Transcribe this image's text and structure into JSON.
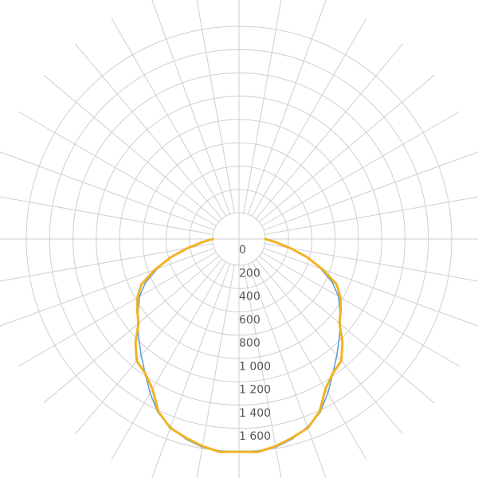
{
  "chart_data": {
    "type": "polar-line",
    "title": "",
    "radial_axis": {
      "range": [
        0,
        1600
      ],
      "tick_values": [
        0,
        200,
        400,
        600,
        800,
        1000,
        1200,
        1400,
        1600
      ],
      "tick_labels": [
        "0",
        "200",
        "400",
        "600",
        "800",
        "1 000",
        "1 200",
        "1 400",
        "1 600"
      ]
    },
    "angular_axis": {
      "spoke_step_deg": 10,
      "zero_direction": "down",
      "symmetric": true
    },
    "grid": true,
    "legend": "none",
    "series": [
      {
        "color": "#5b9bd5",
        "line_width": 1.5,
        "angles_deg": [
          0,
          5,
          10,
          15,
          20,
          25,
          30,
          35,
          40,
          45,
          50,
          55,
          60,
          65,
          70,
          75,
          80,
          85,
          90
        ],
        "values": [
          1600,
          1600,
          1590,
          1550,
          1490,
          1420,
          1300,
          1180,
          1080,
          990,
          910,
          830,
          760,
          660,
          520,
          380,
          220,
          90,
          0
        ]
      },
      {
        "color": "#f0b323",
        "line_width": 3,
        "angles_deg": [
          0,
          5,
          10,
          15,
          20,
          25,
          30,
          35,
          40,
          45,
          50,
          55,
          60,
          65,
          70,
          75,
          80,
          85,
          90
        ],
        "values": [
          1600,
          1610,
          1580,
          1540,
          1500,
          1410,
          1260,
          1180,
          1140,
          1030,
          900,
          840,
          780,
          700,
          540,
          380,
          220,
          90,
          0
        ]
      }
    ]
  }
}
